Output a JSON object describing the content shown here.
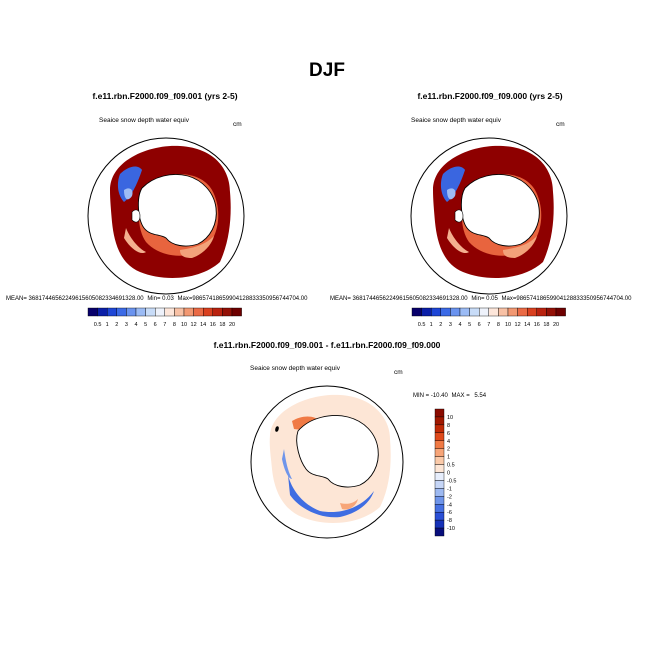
{
  "figure": {
    "title": "DJF"
  },
  "chart_data": [
    {
      "type": "heatmap",
      "title": "f.e11.rbn.F2000.f09_f09.001 (yrs 2-5)",
      "field_label": "Seaice snow depth water equiv",
      "units": "cm",
      "stats": {
        "mean_label": "MEAN=",
        "mean": "36817446562249615605082334691328.00",
        "min_label": "Min=",
        "min": "0.03",
        "max_label": "Max=",
        "max": "98657418659904128833350956744704.00"
      },
      "colorbar": {
        "ticks": [
          "0.5",
          "1",
          "2",
          "3",
          "4",
          "5",
          "6",
          "7",
          "8",
          "10",
          "12",
          "14",
          "16",
          "18",
          "20"
        ],
        "colors": [
          "#08006b",
          "#0b1fa8",
          "#1e46d6",
          "#3b6ae6",
          "#6a93ef",
          "#9bbbf5",
          "#c8dcf8",
          "#eef2fb",
          "#fde6da",
          "#f8c1a5",
          "#f29872",
          "#ea6a45",
          "#d9401f",
          "#b9220f",
          "#931006",
          "#6e0000"
        ]
      }
    },
    {
      "type": "heatmap",
      "title": "f.e11.rbn.F2000.f09_f09.000 (yrs 2-5)",
      "field_label": "Seaice snow depth water equiv",
      "units": "cm",
      "stats": {
        "mean_label": "MEAN=",
        "mean": "36817446562249615605082334691328.00",
        "min_label": "Min=",
        "min": "0.05",
        "max_label": "Max=",
        "max": "98657418659904128833350956744704.00"
      },
      "colorbar": {
        "ticks": [
          "0.5",
          "1",
          "2",
          "3",
          "4",
          "5",
          "6",
          "7",
          "8",
          "10",
          "12",
          "14",
          "16",
          "18",
          "20"
        ],
        "colors": [
          "#08006b",
          "#0b1fa8",
          "#1e46d6",
          "#3b6ae6",
          "#6a93ef",
          "#9bbbf5",
          "#c8dcf8",
          "#eef2fb",
          "#fde6da",
          "#f8c1a5",
          "#f29872",
          "#ea6a45",
          "#d9401f",
          "#b9220f",
          "#931006",
          "#6e0000"
        ]
      }
    },
    {
      "type": "heatmap",
      "title": "f.e11.rbn.F2000.f09_f09.001 - f.e11.rbn.F2000.f09_f09.000",
      "field_label": "Seaice snow depth water equiv",
      "units": "cm",
      "stats": {
        "min_label": "MIN =",
        "min": "-10.40",
        "max_label": "MAX =",
        "max": "5.54"
      },
      "colorbar": {
        "ticks": [
          "10",
          "8",
          "6",
          "4",
          "2",
          "1",
          "0.5",
          "0",
          "-0.5",
          "-1",
          "-2",
          "-4",
          "-6",
          "-8",
          "-10"
        ],
        "colors": [
          "#8a0b00",
          "#a01800",
          "#c02a06",
          "#df4a1b",
          "#f07a45",
          "#f7a578",
          "#fbcaa9",
          "#fde6d6",
          "#e7eefc",
          "#c6d6f7",
          "#9db9f1",
          "#6f95ea",
          "#4771e2",
          "#2a4fd6",
          "#1632b8",
          "#080e7c"
        ]
      }
    }
  ]
}
